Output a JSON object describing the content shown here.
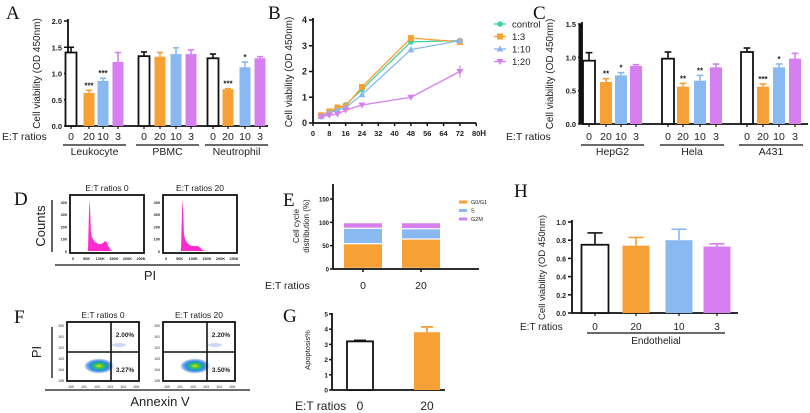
{
  "colors": {
    "control": "#ffffff",
    "ratio20": "#f7a035",
    "ratio10": "#8ab8f0",
    "ratio3": "#d77ff0",
    "line_control": "#3fd1a0",
    "histogram": "#ff2bd0",
    "G0G1": "#f7a035",
    "S": "#8ab8f0",
    "G2M": "#d77ff0"
  },
  "chart_data": [
    {
      "panel": "A",
      "type": "bar",
      "ylabel": "Cell viability (OD 450nm)",
      "xlabel": "E:T ratios",
      "ylim": [
        0,
        2
      ],
      "yticks": [
        "0.0",
        "0.5",
        "1.0",
        "1.5",
        "2.0"
      ],
      "categories": [
        "0",
        "20",
        "10",
        "3"
      ],
      "groups": [
        {
          "name": "Leukocyte",
          "values": [
            1.4,
            0.63,
            0.86,
            1.22
          ],
          "errors": [
            0.1,
            0.05,
            0.05,
            0.18
          ],
          "significance": [
            "",
            "***",
            "***",
            ""
          ]
        },
        {
          "name": "PBMC",
          "values": [
            1.33,
            1.32,
            1.37,
            1.37
          ],
          "errors": [
            0.08,
            0.08,
            0.12,
            0.08
          ],
          "significance": [
            "",
            "",
            "",
            ""
          ]
        },
        {
          "name": "Neutrophil",
          "values": [
            1.29,
            0.7,
            1.12,
            1.29
          ],
          "errors": [
            0.08,
            0.01,
            0.1,
            0.03
          ],
          "significance": [
            "",
            "***",
            "*",
            ""
          ]
        }
      ]
    },
    {
      "panel": "B",
      "type": "line",
      "ylabel": "Cell viability (OD 450nm)",
      "xunit": "H",
      "xlim": [
        0,
        80
      ],
      "ylim": [
        0,
        4
      ],
      "xticks": [
        "0",
        "8",
        "16",
        "24",
        "32",
        "40",
        "48",
        "56",
        "64",
        "72",
        "80"
      ],
      "yticks": [
        "0",
        "1",
        "2",
        "3",
        "4"
      ],
      "x": [
        4,
        8,
        12,
        16,
        24,
        48,
        72
      ],
      "legend": "top-right",
      "series": [
        {
          "name": "control",
          "marker": "circle",
          "values": [
            0.3,
            0.45,
            0.55,
            0.7,
            1.3,
            3.15,
            3.2
          ],
          "errors": [
            0.03,
            0.03,
            0.04,
            0.05,
            0.08,
            0.1,
            0.08
          ]
        },
        {
          "name": "1:3",
          "marker": "square",
          "values": [
            0.3,
            0.45,
            0.6,
            0.65,
            1.4,
            3.3,
            3.15
          ],
          "errors": [
            0.03,
            0.03,
            0.04,
            0.05,
            0.08,
            0.08,
            0.06
          ]
        },
        {
          "name": "1:10",
          "marker": "triangle-up",
          "values": [
            0.25,
            0.4,
            0.5,
            0.6,
            1.1,
            2.85,
            3.2
          ],
          "errors": [
            0.03,
            0.03,
            0.04,
            0.05,
            0.1,
            0.12,
            0.1
          ]
        },
        {
          "name": "1:20",
          "marker": "triangle-down",
          "values": [
            0.25,
            0.3,
            0.35,
            0.5,
            0.7,
            1.0,
            2.0
          ],
          "errors": [
            0.03,
            0.03,
            0.05,
            0.05,
            0.05,
            0.1,
            0.25
          ]
        }
      ]
    },
    {
      "panel": "C",
      "type": "bar",
      "ylabel": "Cell viability (OD 450nm)",
      "xlabel": "E:T ratios",
      "ylim": [
        0,
        1.5
      ],
      "yticks": [
        "0.0",
        "0.5",
        "1.0",
        "1.5"
      ],
      "categories": [
        "0",
        "20",
        "10",
        "3"
      ],
      "groups": [
        {
          "name": "HepG2",
          "values": [
            0.95,
            0.63,
            0.73,
            0.87
          ],
          "errors": [
            0.12,
            0.05,
            0.04,
            0.02
          ],
          "significance": [
            "",
            "**",
            "*",
            ""
          ]
        },
        {
          "name": "Hela",
          "values": [
            0.98,
            0.56,
            0.65,
            0.85
          ],
          "errors": [
            0.1,
            0.05,
            0.08,
            0.05
          ],
          "significance": [
            "",
            "**",
            "**",
            ""
          ]
        },
        {
          "name": "A431",
          "values": [
            1.08,
            0.56,
            0.85,
            0.98
          ],
          "errors": [
            0.06,
            0.04,
            0.05,
            0.08
          ],
          "significance": [
            "",
            "***",
            "*",
            ""
          ]
        }
      ]
    },
    {
      "panel": "D",
      "type": "histogram",
      "ylabel": "Counts",
      "xlabel": "PI",
      "yticks": [
        "0",
        "100",
        "200",
        "300",
        "400"
      ],
      "xticks": [
        "0",
        "50K",
        "100K",
        "150K",
        "200K",
        "250K"
      ],
      "plots": [
        {
          "title": "E:T ratios 0",
          "x": [
            48,
            55,
            60,
            63,
            66,
            70,
            80,
            90,
            100,
            110,
            118,
            125,
            130,
            138,
            145
          ],
          "counts": [
            0,
            0,
            420,
            330,
            150,
            110,
            75,
            60,
            55,
            65,
            80,
            70,
            40,
            10,
            0
          ]
        },
        {
          "title": "E:T ratios 20",
          "x": [
            48,
            55,
            60,
            63,
            66,
            70,
            80,
            90,
            100,
            110,
            118,
            125,
            130,
            138,
            145
          ],
          "counts": [
            0,
            0,
            420,
            320,
            140,
            95,
            60,
            45,
            40,
            40,
            40,
            30,
            15,
            5,
            0
          ]
        }
      ]
    },
    {
      "panel": "E",
      "type": "bar",
      "stacked": true,
      "ylabel": [
        "Cell cycle",
        "distribution (%)"
      ],
      "xlabel": "E:T ratios",
      "ylim": [
        0,
        150
      ],
      "yticks": [
        "0",
        "50",
        "100",
        "150"
      ],
      "categories": [
        "0",
        "20"
      ],
      "legend": "right",
      "series": [
        {
          "name": "G0/G1",
          "values": [
            53,
            63
          ]
        },
        {
          "name": "S",
          "values": [
            33,
            22
          ]
        },
        {
          "name": "G2M",
          "values": [
            12,
            13
          ]
        }
      ]
    },
    {
      "panel": "F",
      "type": "scatter",
      "xlabel": "Annexin V",
      "ylabel": "PI",
      "plots": [
        {
          "title": "E:T ratios 0",
          "upper_right": "2.00%",
          "lower_right": "3.27%"
        },
        {
          "title": "E:T ratios 20",
          "upper_right": "2.20%",
          "lower_right": "3.50%"
        }
      ]
    },
    {
      "panel": "G",
      "type": "bar",
      "ylabel": "Apoptosis%",
      "xlabel": "E:T ratios",
      "ylim": [
        0,
        5
      ],
      "yticks": [
        "0",
        "1",
        "2",
        "3",
        "4",
        "5"
      ],
      "categories": [
        "0",
        "20"
      ],
      "values": [
        3.2,
        3.8
      ],
      "errors": [
        0.06,
        0.35
      ]
    },
    {
      "panel": "H",
      "type": "bar",
      "ylabel": "Cell viability (OD 450nm)",
      "xlabel": "E:T ratios",
      "ylim": [
        0,
        1
      ],
      "yticks": [
        "0.0",
        "0.2",
        "0.4",
        "0.6",
        "0.8",
        "1.0"
      ],
      "categories": [
        "0",
        "20",
        "10",
        "3"
      ],
      "groups": [
        {
          "name": "Endothelial",
          "values": [
            0.75,
            0.74,
            0.8,
            0.73
          ],
          "errors": [
            0.13,
            0.09,
            0.12,
            0.03
          ],
          "significance": [
            "",
            "",
            "",
            ""
          ]
        }
      ]
    }
  ]
}
